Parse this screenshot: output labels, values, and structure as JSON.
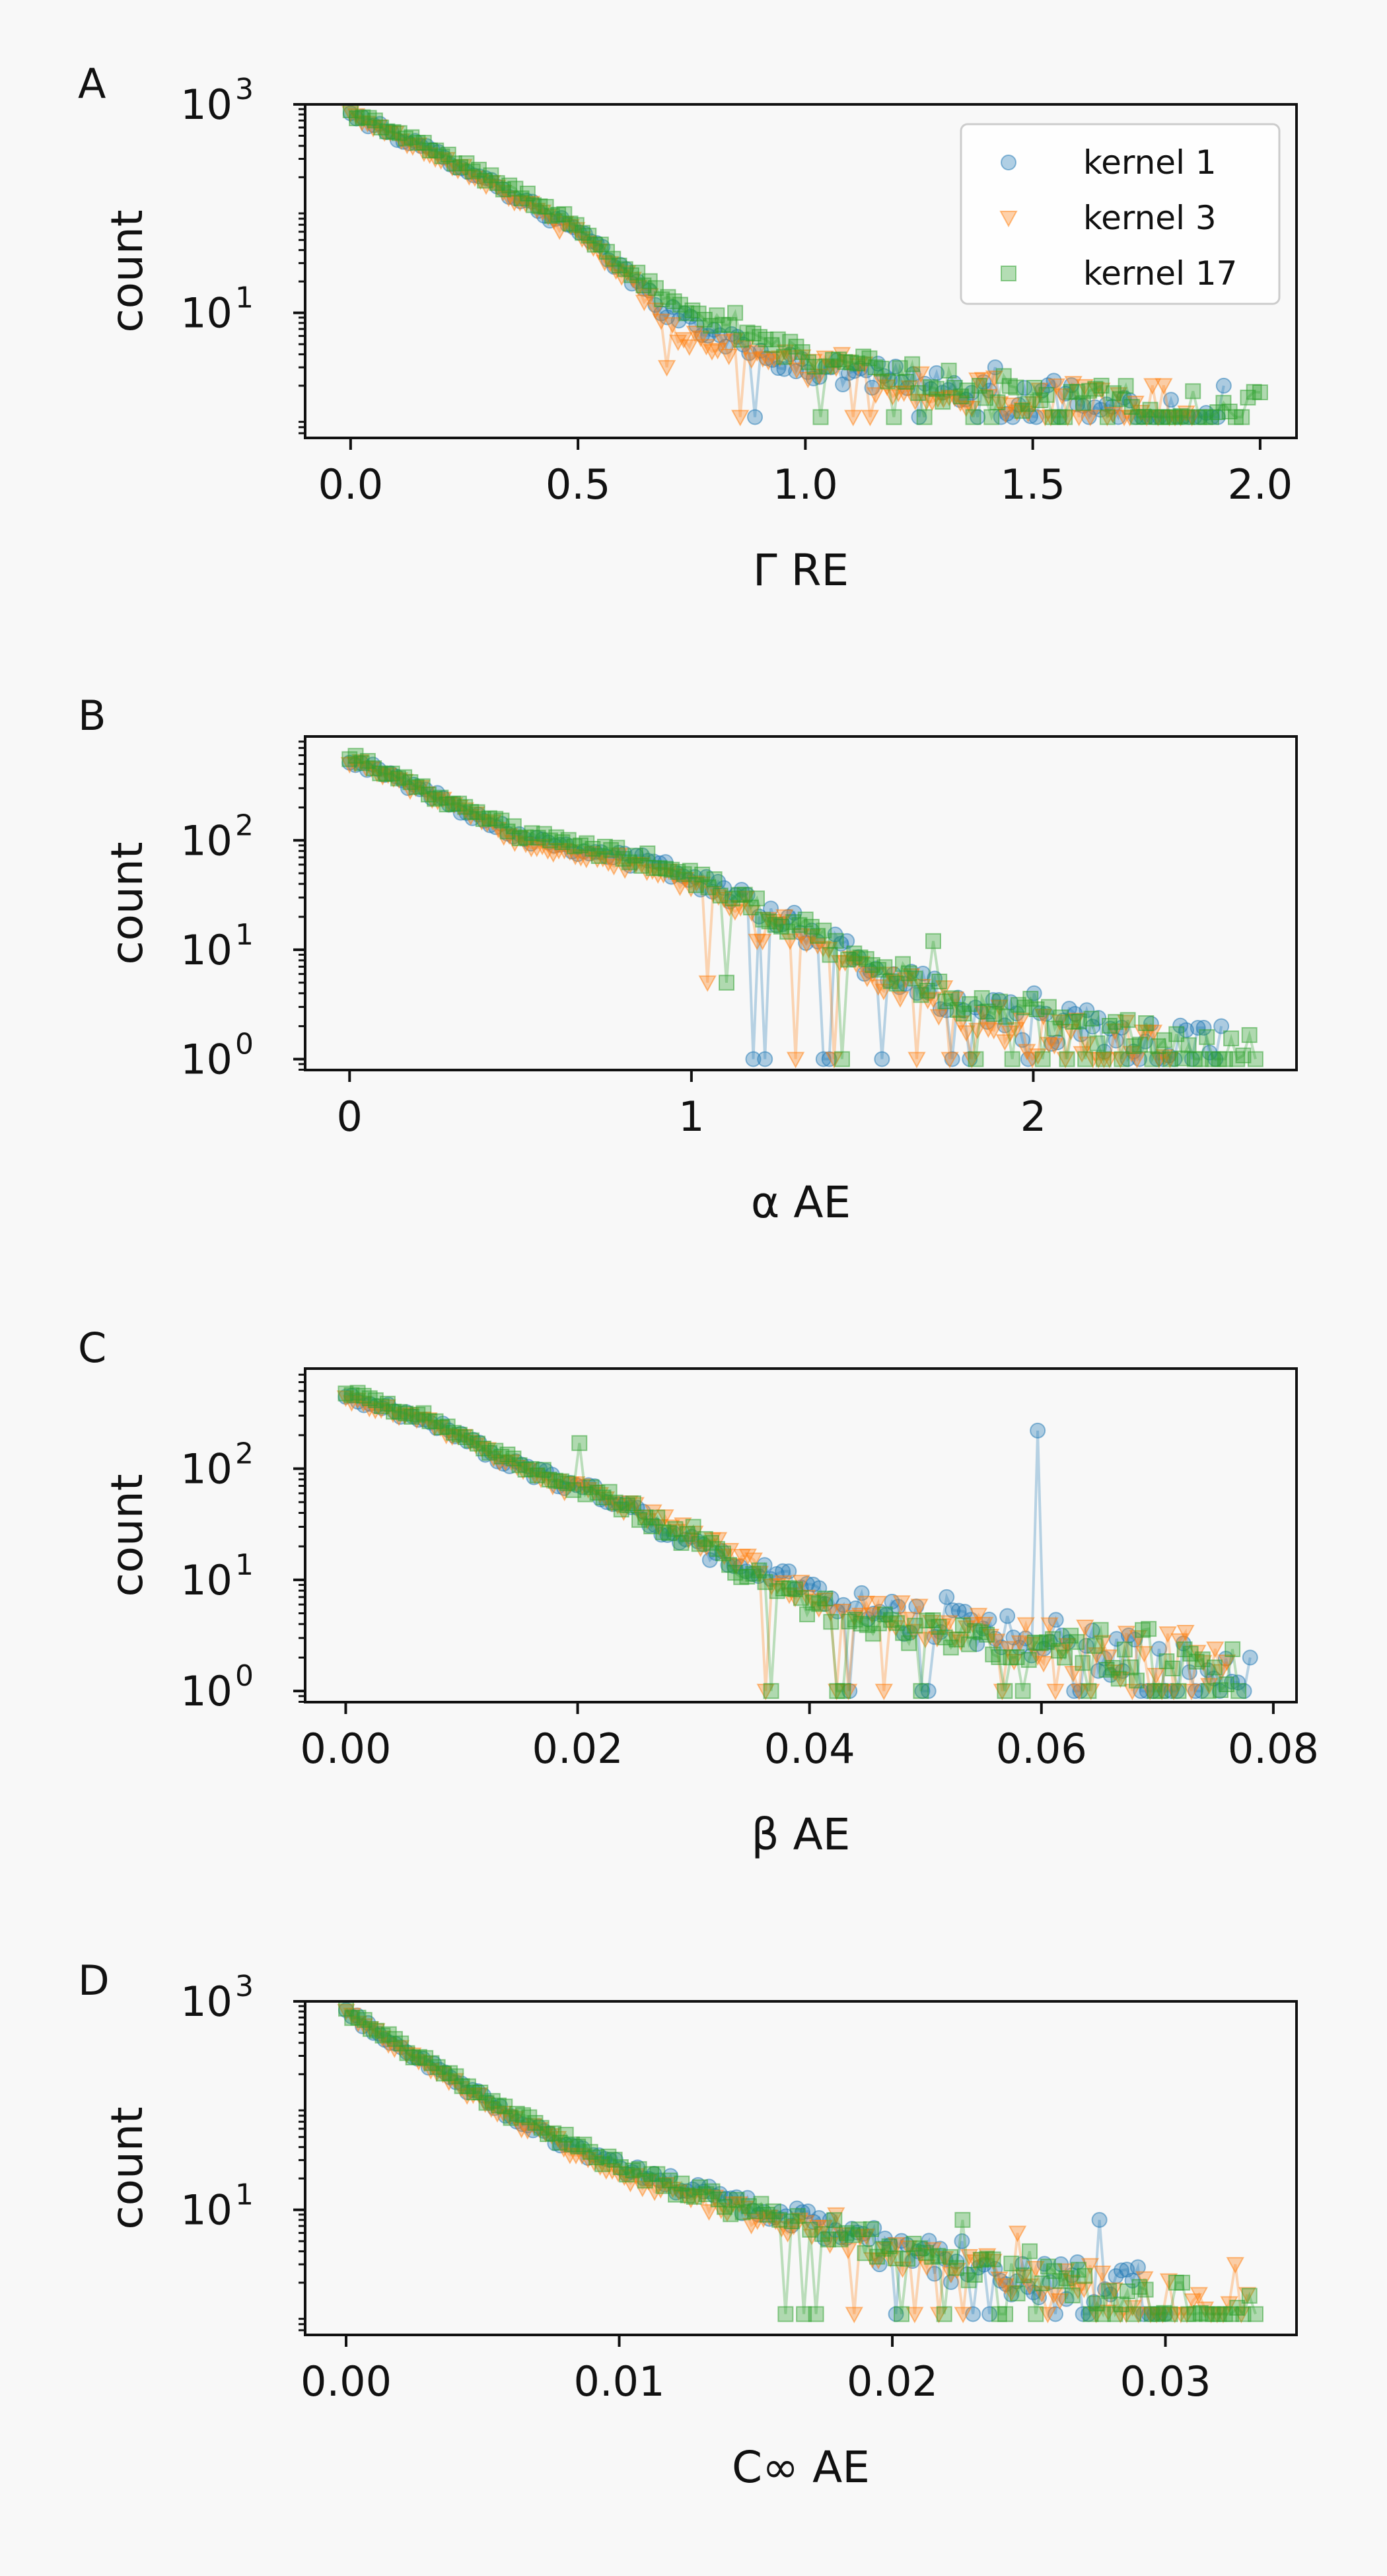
{
  "figure": {
    "background": "#f8f8f8"
  },
  "series_styles": [
    {
      "name": "kernel 1",
      "marker": "circle",
      "color": "#1f77b4"
    },
    {
      "name": "kernel 3",
      "marker": "triangle-down",
      "color": "#ff7f0e"
    },
    {
      "name": "kernel 17",
      "marker": "square",
      "color": "#2ca02c"
    }
  ],
  "chart_data": [
    {
      "panel": "A",
      "type": "line",
      "xlabel": "Γ RE",
      "ylabel": "count",
      "y_scale": "log",
      "xlim": [
        -0.1,
        2.08
      ],
      "ylim_exp": [
        -0.2,
        3
      ],
      "x_ticks": [
        0.0,
        0.5,
        1.0,
        1.5,
        2.0
      ],
      "x_tick_labels": [
        "0.0",
        "0.5",
        "1.0",
        "1.5",
        "2.0"
      ],
      "y_ticks": [
        1,
        3
      ],
      "y_tick_base": "10",
      "y_tick_exps": [
        "1",
        "3"
      ],
      "legend": "top-right",
      "grid": false,
      "series": [
        {
          "name": "kernel 1",
          "x_max": 1.92,
          "start": 800,
          "knots": [
            [
              0,
              800
            ],
            [
              0.25,
              250
            ],
            [
              0.5,
              60
            ],
            [
              0.6,
              25
            ],
            [
              0.7,
              10
            ],
            [
              0.9,
              4
            ],
            [
              1.0,
              3
            ],
            [
              1.3,
              2
            ],
            [
              1.6,
              1.3
            ],
            [
              1.92,
              1
            ]
          ],
          "spikes": [
            [
              1.92,
              2
            ],
            [
              1.42,
              3
            ],
            [
              1.05,
              3
            ]
          ]
        },
        {
          "name": "kernel 3",
          "x_max": 1.85,
          "start": 800,
          "knots": [
            [
              0,
              800
            ],
            [
              0.25,
              240
            ],
            [
              0.5,
              55
            ],
            [
              0.62,
              20
            ],
            [
              0.72,
              6
            ],
            [
              0.8,
              5
            ],
            [
              1.0,
              3
            ],
            [
              1.3,
              1.8
            ],
            [
              1.6,
              1.2
            ],
            [
              1.85,
              1
            ]
          ],
          "spikes": [
            [
              0.7,
              3
            ],
            [
              1.08,
              4
            ],
            [
              1.55,
              2
            ]
          ]
        },
        {
          "name": "kernel 17",
          "x_max": 2.0,
          "start": 850,
          "knots": [
            [
              0,
              850
            ],
            [
              0.25,
              260
            ],
            [
              0.5,
              70
            ],
            [
              0.6,
              30
            ],
            [
              0.7,
              12
            ],
            [
              0.8,
              8
            ],
            [
              1.0,
              4
            ],
            [
              1.3,
              2
            ],
            [
              1.6,
              1.3
            ],
            [
              2.0,
              1
            ]
          ],
          "spikes": [
            [
              0.85,
              10
            ],
            [
              1.15,
              3
            ],
            [
              1.65,
              2
            ]
          ]
        }
      ]
    },
    {
      "panel": "B",
      "type": "line",
      "xlabel": "α AE",
      "ylabel": "count",
      "y_scale": "log",
      "xlim": [
        -0.13,
        2.77
      ],
      "ylim_exp": [
        -0.1,
        2.95
      ],
      "x_ticks": [
        0,
        1,
        2
      ],
      "x_tick_labels": [
        "0",
        "1",
        "2"
      ],
      "y_ticks": [
        0,
        1,
        2
      ],
      "y_tick_base": "10",
      "y_tick_exps": [
        "0",
        "1",
        "2"
      ],
      "grid": false,
      "series": [
        {
          "name": "kernel 1",
          "x_max": 2.55,
          "start": 560,
          "knots": [
            [
              0,
              560
            ],
            [
              0.2,
              300
            ],
            [
              0.5,
              110
            ],
            [
              0.9,
              60
            ],
            [
              1.2,
              25
            ],
            [
              1.5,
              8
            ],
            [
              1.8,
              3
            ],
            [
              2.1,
              2
            ],
            [
              2.4,
              1.2
            ],
            [
              2.55,
              1
            ]
          ],
          "spikes": [
            [
              2.55,
              2
            ],
            [
              1.45,
              12
            ],
            [
              2.0,
              4
            ]
          ]
        },
        {
          "name": "kernel 3",
          "x_max": 2.4,
          "start": 540,
          "knots": [
            [
              0,
              540
            ],
            [
              0.2,
              290
            ],
            [
              0.5,
              100
            ],
            [
              0.9,
              55
            ],
            [
              1.2,
              22
            ],
            [
              1.5,
              7
            ],
            [
              1.8,
              2.5
            ],
            [
              2.1,
              1.5
            ],
            [
              2.4,
              1
            ]
          ],
          "spikes": [
            [
              1.2,
              12
            ],
            [
              1.05,
              5
            ],
            [
              1.9,
              3
            ]
          ]
        },
        {
          "name": "kernel 17",
          "x_max": 2.65,
          "start": 600,
          "knots": [
            [
              0,
              600
            ],
            [
              0.2,
              310
            ],
            [
              0.5,
              115
            ],
            [
              0.9,
              62
            ],
            [
              1.2,
              24
            ],
            [
              1.5,
              8
            ],
            [
              1.8,
              3
            ],
            [
              2.1,
              2
            ],
            [
              2.4,
              1.2
            ],
            [
              2.65,
              1
            ]
          ],
          "spikes": [
            [
              1.1,
              5
            ],
            [
              1.7,
              12
            ],
            [
              2.05,
              3
            ]
          ]
        }
      ]
    },
    {
      "panel": "C",
      "type": "line",
      "xlabel": "β AE",
      "ylabel": "count",
      "y_scale": "log",
      "xlim": [
        -0.0035,
        0.082
      ],
      "ylim_exp": [
        -0.1,
        2.9
      ],
      "x_ticks": [
        0.0,
        0.02,
        0.04,
        0.06,
        0.08
      ],
      "x_tick_labels": [
        "0.00",
        "0.02",
        "0.04",
        "0.06",
        "0.08"
      ],
      "y_ticks": [
        0,
        1,
        2
      ],
      "y_tick_base": "10",
      "y_tick_exps": [
        "0",
        "1",
        "2"
      ],
      "grid": false,
      "series": [
        {
          "name": "kernel 1",
          "x_max": 0.078,
          "start": 450,
          "knots": [
            [
              0,
              450
            ],
            [
              0.008,
              250
            ],
            [
              0.015,
              100
            ],
            [
              0.022,
              60
            ],
            [
              0.03,
              20
            ],
            [
              0.04,
              8
            ],
            [
              0.05,
              4
            ],
            [
              0.06,
              3
            ],
            [
              0.07,
              2
            ],
            [
              0.078,
              1.5
            ]
          ],
          "spikes": [
            [
              0.0595,
              220
            ],
            [
              0.078,
              2
            ],
            [
              0.052,
              7
            ]
          ]
        },
        {
          "name": "kernel 3",
          "x_max": 0.076,
          "start": 440,
          "knots": [
            [
              0,
              440
            ],
            [
              0.008,
              240
            ],
            [
              0.015,
              95
            ],
            [
              0.022,
              55
            ],
            [
              0.03,
              25
            ],
            [
              0.04,
              7
            ],
            [
              0.05,
              4
            ],
            [
              0.06,
              2.5
            ],
            [
              0.07,
              2
            ],
            [
              0.076,
              1.5
            ]
          ],
          "spikes": [
            [
              0.04,
              7
            ],
            [
              0.068,
              5
            ],
            [
              0.055,
              4
            ]
          ]
        },
        {
          "name": "kernel 17",
          "x_max": 0.077,
          "start": 480,
          "knots": [
            [
              0,
              480
            ],
            [
              0.008,
              260
            ],
            [
              0.015,
              105
            ],
            [
              0.022,
              60
            ],
            [
              0.03,
              22
            ],
            [
              0.04,
              6
            ],
            [
              0.05,
              3.5
            ],
            [
              0.06,
              2.5
            ],
            [
              0.07,
              2
            ],
            [
              0.077,
              1.5
            ]
          ],
          "spikes": [
            [
              0.02,
              170
            ],
            [
              0.03,
              30
            ],
            [
              0.062,
              2
            ]
          ]
        }
      ]
    },
    {
      "panel": "D",
      "type": "line",
      "xlabel": "C∞ AE",
      "ylabel": "count",
      "y_scale": "log",
      "xlim": [
        -0.0015,
        0.0348
      ],
      "ylim_exp": [
        -0.2,
        3
      ],
      "x_ticks": [
        0.0,
        0.01,
        0.02,
        0.03
      ],
      "x_tick_labels": [
        "0.00",
        "0.01",
        "0.02",
        "0.03"
      ],
      "y_ticks": [
        1,
        3
      ],
      "y_tick_base": "10",
      "y_tick_exps": [
        "1",
        "3"
      ],
      "grid": false,
      "series": [
        {
          "name": "kernel 1",
          "x_max": 0.03,
          "start": 780,
          "knots": [
            [
              0,
              780
            ],
            [
              0.003,
              250
            ],
            [
              0.006,
              80
            ],
            [
              0.01,
              25
            ],
            [
              0.014,
              12
            ],
            [
              0.018,
              6
            ],
            [
              0.022,
              3
            ],
            [
              0.026,
              2
            ],
            [
              0.03,
              1.3
            ]
          ],
          "spikes": [
            [
              0.0275,
              8
            ],
            [
              0.0195,
              3
            ],
            [
              0.0225,
              5
            ]
          ]
        },
        {
          "name": "kernel 3",
          "x_max": 0.033,
          "start": 760,
          "knots": [
            [
              0,
              760
            ],
            [
              0.003,
              240
            ],
            [
              0.006,
              75
            ],
            [
              0.01,
              22
            ],
            [
              0.014,
              10
            ],
            [
              0.018,
              5
            ],
            [
              0.022,
              3
            ],
            [
              0.026,
              2
            ],
            [
              0.03,
              1.3
            ],
            [
              0.033,
              1
            ]
          ],
          "spikes": [
            [
              0.018,
              9
            ],
            [
              0.0245,
              6
            ],
            [
              0.0325,
              3
            ]
          ]
        },
        {
          "name": "kernel 17",
          "x_max": 0.0333,
          "start": 800,
          "knots": [
            [
              0,
              800
            ],
            [
              0.003,
              260
            ],
            [
              0.006,
              85
            ],
            [
              0.01,
              26
            ],
            [
              0.014,
              11
            ],
            [
              0.018,
              6
            ],
            [
              0.022,
              3
            ],
            [
              0.026,
              2
            ],
            [
              0.03,
              1.3
            ],
            [
              0.0333,
              1
            ]
          ],
          "spikes": [
            [
              0.0225,
              8
            ],
            [
              0.025,
              4
            ],
            [
              0.0305,
              2
            ]
          ]
        }
      ]
    }
  ]
}
